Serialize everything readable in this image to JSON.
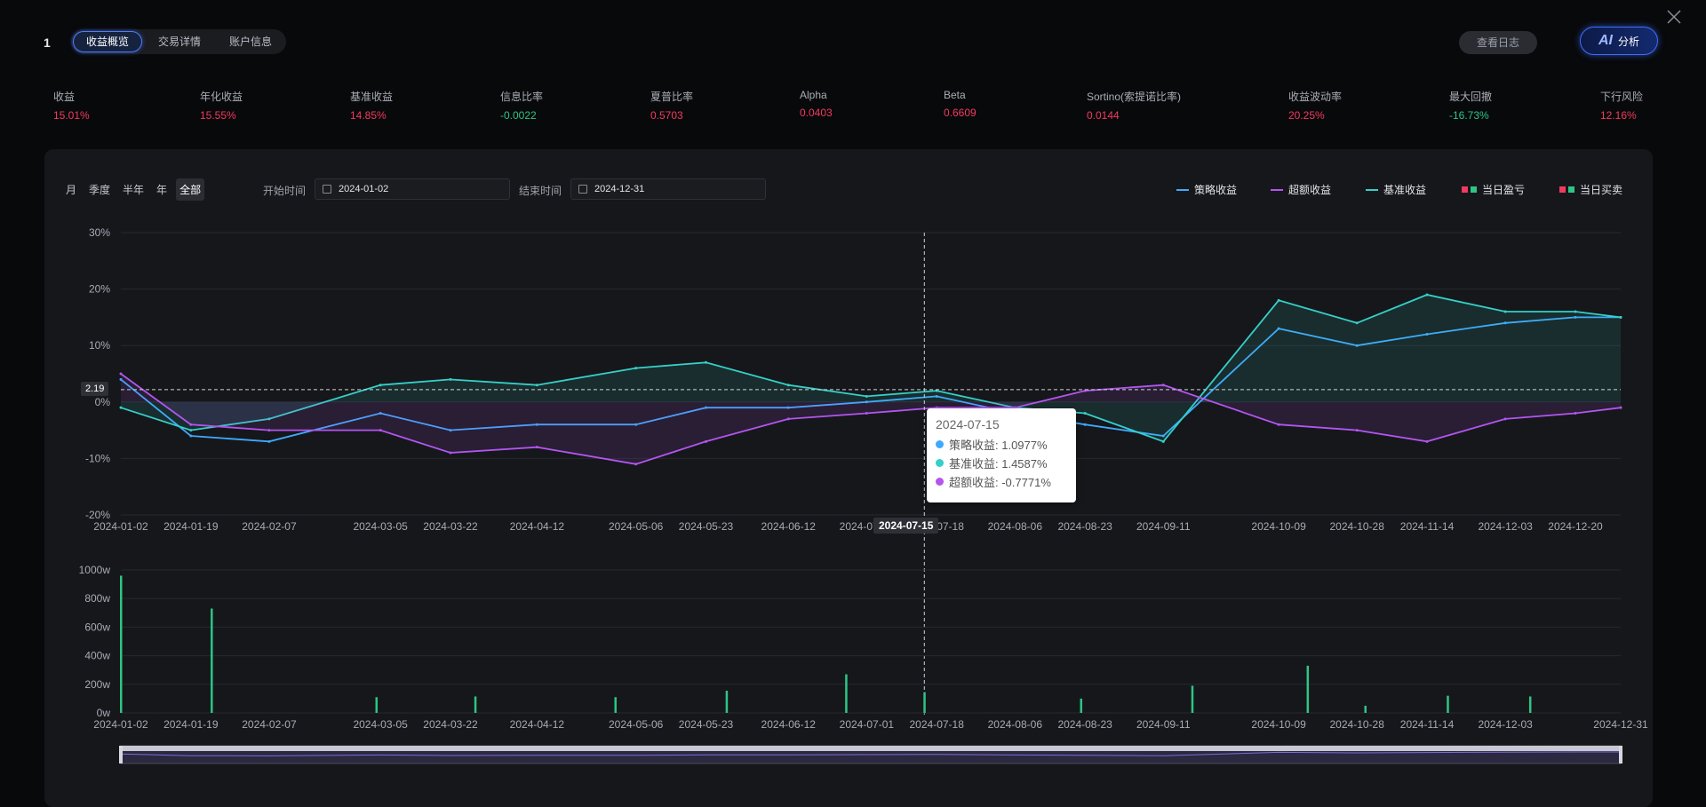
{
  "header": {
    "number": "1",
    "tabs": [
      {
        "label": "收益概览",
        "active": true
      },
      {
        "label": "交易详情",
        "active": false
      },
      {
        "label": "账户信息",
        "active": false
      }
    ],
    "log_button": "查看日志",
    "ai_button_icon": "AI",
    "ai_button_label": "分析"
  },
  "metrics": [
    {
      "label": "收益",
      "value": "15.01%",
      "color": "red"
    },
    {
      "label": "年化收益",
      "value": "15.55%",
      "color": "red"
    },
    {
      "label": "基准收益",
      "value": "14.85%",
      "color": "red"
    },
    {
      "label": "信息比率",
      "value": "-0.0022",
      "color": "green"
    },
    {
      "label": "夏普比率",
      "value": "0.5703",
      "color": "red"
    },
    {
      "label": "Alpha",
      "value": "0.0403",
      "color": "red"
    },
    {
      "label": "Beta",
      "value": "0.6609",
      "color": "red"
    },
    {
      "label": "Sortino(索提诺比率)",
      "value": "0.0144",
      "color": "red"
    },
    {
      "label": "收益波动率",
      "value": "20.25%",
      "color": "red"
    },
    {
      "label": "最大回撤",
      "value": "-16.73%",
      "color": "green"
    },
    {
      "label": "下行风险",
      "value": "12.16%",
      "color": "red"
    }
  ],
  "controls": {
    "periods": [
      {
        "label": "月",
        "active": false
      },
      {
        "label": "季度",
        "active": false
      },
      {
        "label": "半年",
        "active": false
      },
      {
        "label": "年",
        "active": false
      },
      {
        "label": "全部",
        "active": true
      }
    ],
    "start_label": "开始时间",
    "start_value": "2024-01-02",
    "end_label": "结束时间",
    "end_value": "2024-12-31"
  },
  "legend": [
    {
      "label": "策略收益",
      "kind": "line",
      "color": "#3fa9ff"
    },
    {
      "label": "超额收益",
      "kind": "line",
      "color": "#b355f0"
    },
    {
      "label": "基准收益",
      "kind": "line",
      "color": "#35d0c8"
    },
    {
      "label": "当日盈亏",
      "kind": "squares",
      "colors": [
        "#f23a5e",
        "#2ec486"
      ]
    },
    {
      "label": "当日买卖",
      "kind": "squares",
      "colors": [
        "#f23a5e",
        "#2ec486"
      ]
    }
  ],
  "tooltip": {
    "date": "2024-07-15",
    "rows": [
      {
        "label": "策略收益: 1.0977%",
        "color": "#3fa9ff"
      },
      {
        "label": "基准收益: 1.4587%",
        "color": "#35d0c8"
      },
      {
        "label": "超额收益: -0.7771%",
        "color": "#b355f0"
      }
    ]
  },
  "crosshair": {
    "x_label": "2024-07-15",
    "y_label": "2.19"
  },
  "colors": {
    "strategy": "#3fa9ff",
    "excess": "#b355f0",
    "benchmark": "#35d0c8",
    "profit": "#f23a5e",
    "loss": "#2ec486"
  },
  "chart_data": [
    {
      "type": "line",
      "y_ticks": [
        "30%",
        "20%",
        "10%",
        "0%",
        "-10%",
        "-20%"
      ],
      "ylim": [
        -20,
        30
      ],
      "x_ticks": [
        "2024-01-02",
        "2024-01-19",
        "2024-02-07",
        "2024-03-05",
        "2024-03-22",
        "2024-04-12",
        "2024-05-06",
        "2024-05-23",
        "2024-06-12",
        "2024-07-01",
        "2024-07-18",
        "2024-08-06",
        "2024-08-23",
        "2024-09-11",
        "2024-10-09",
        "2024-10-28",
        "2024-11-14",
        "2024-12-03",
        "2024-12-20"
      ],
      "x": [
        "2024-01-02",
        "2024-01-19",
        "2024-02-07",
        "2024-03-05",
        "2024-03-22",
        "2024-04-12",
        "2024-05-06",
        "2024-05-23",
        "2024-06-12",
        "2024-07-01",
        "2024-07-18",
        "2024-08-06",
        "2024-08-23",
        "2024-09-11",
        "2024-10-09",
        "2024-10-28",
        "2024-11-14",
        "2024-12-03",
        "2024-12-20",
        "2024-12-31"
      ],
      "series": [
        {
          "name": "策略收益",
          "values": [
            4,
            -6,
            -7,
            -2,
            -5,
            -4,
            -4,
            -1,
            -1,
            0,
            1,
            -2,
            -4,
            -6,
            13,
            10,
            12,
            14,
            15,
            15
          ]
        },
        {
          "name": "基准收益",
          "values": [
            -1,
            -5,
            -3,
            3,
            4,
            3,
            6,
            7,
            3,
            1,
            2,
            -1,
            -2,
            -7,
            18,
            14,
            19,
            16,
            16,
            15
          ]
        },
        {
          "name": "超额收益",
          "values": [
            5,
            -4,
            -5,
            -5,
            -9,
            -8,
            -11,
            -7,
            -3,
            -2,
            -1,
            -1,
            2,
            3,
            -4,
            -5,
            -7,
            -3,
            -2,
            -1
          ]
        }
      ]
    },
    {
      "type": "bar",
      "y_ticks": [
        "1000w",
        "800w",
        "600w",
        "400w",
        "200w",
        "0w"
      ],
      "ylim": [
        0,
        1000
      ],
      "x_ticks": [
        "2024-01-02",
        "2024-01-19",
        "2024-02-07",
        "2024-03-05",
        "2024-03-22",
        "2024-04-12",
        "2024-05-06",
        "2024-05-23",
        "2024-06-12",
        "2024-07-01",
        "2024-07-18",
        "2024-08-06",
        "2024-08-23",
        "2024-09-11",
        "2024-10-09",
        "2024-10-28",
        "2024-11-14",
        "2024-12-03",
        "2024-12-31"
      ],
      "categories": [
        "2024-01-02",
        "2024-01-24",
        "2024-03-04",
        "2024-03-28",
        "2024-05-01",
        "2024-05-28",
        "2024-06-26",
        "2024-07-15",
        "2024-08-22",
        "2024-09-18",
        "2024-10-16",
        "2024-10-30",
        "2024-11-19",
        "2024-12-09"
      ],
      "values": [
        960,
        730,
        110,
        115,
        110,
        155,
        270,
        145,
        100,
        190,
        330,
        50,
        120,
        115
      ]
    }
  ]
}
